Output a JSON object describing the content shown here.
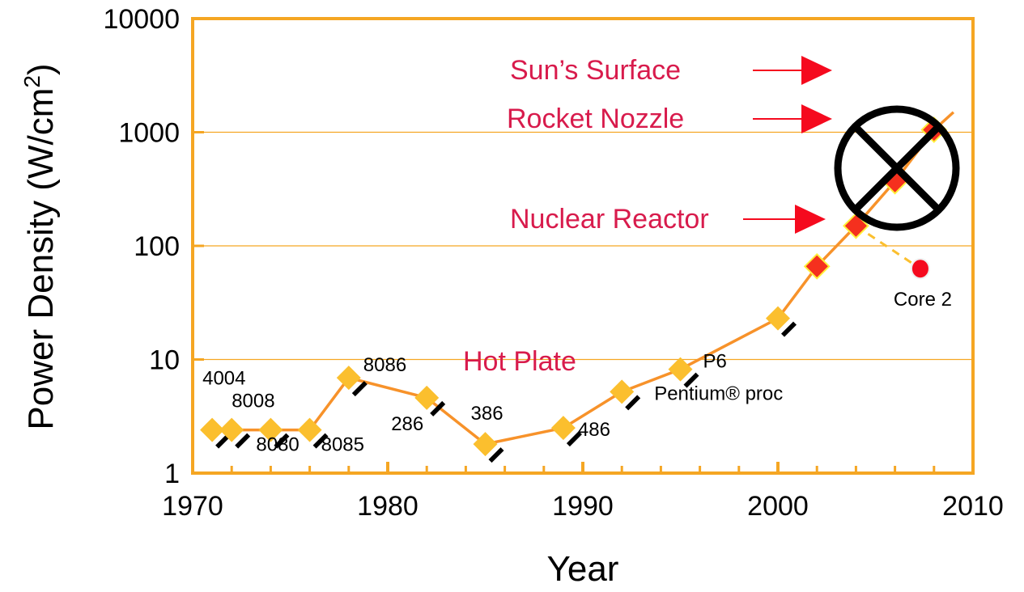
{
  "chart_data": {
    "type": "line",
    "title": "",
    "xlabel": "Year",
    "ylabel": "Power Density (W/cm²)",
    "ylabel_parts": {
      "main": "Power Density (W/cm",
      "sup": "2",
      "end": ")"
    },
    "xlim": [
      1970,
      2010
    ],
    "ylim": [
      1,
      10000
    ],
    "yscale": "log",
    "grid": "horizontal at decades",
    "x_ticks": [
      "1970",
      "1980",
      "1990",
      "2000",
      "2010"
    ],
    "y_ticks": [
      "1",
      "10",
      "100",
      "1000",
      "10000"
    ],
    "colors": {
      "axis": "#f5a623",
      "line": "#f7922a",
      "diamond": "#fbbf2e",
      "diamond_hot": "#f5301e",
      "annotation": "#d81b4c",
      "arrow": "#f50a1e",
      "core2": "#f50a1e"
    },
    "series": [
      {
        "points": [
          {
            "x": 1971,
            "y": 2.4,
            "label": "4004",
            "color": "diamond"
          },
          {
            "x": 1972,
            "y": 2.4,
            "label": "8008",
            "color": "diamond"
          },
          {
            "x": 1974,
            "y": 2.4,
            "label": "8080",
            "color": "diamond"
          },
          {
            "x": 1976,
            "y": 2.4,
            "label": "8085",
            "color": "diamond"
          },
          {
            "x": 1978,
            "y": 6.9,
            "label": "8086",
            "color": "diamond"
          },
          {
            "x": 1982,
            "y": 4.6,
            "label": "286",
            "color": "diamond"
          },
          {
            "x": 1985,
            "y": 1.8,
            "label": "386",
            "color": "diamond"
          },
          {
            "x": 1989,
            "y": 2.5,
            "label": "486",
            "color": "diamond"
          },
          {
            "x": 1992,
            "y": 5.2,
            "label": "Pentium® proc",
            "color": "diamond"
          },
          {
            "x": 1995,
            "y": 8.2,
            "label": "P6",
            "color": "diamond"
          },
          {
            "x": 2000,
            "y": 23,
            "label": "",
            "color": "diamond"
          },
          {
            "x": 2002,
            "y": 66,
            "label": "",
            "color": "diamond_hot"
          },
          {
            "x": 2004,
            "y": 150,
            "label": "",
            "color": "diamond_hot"
          },
          {
            "x": 2006,
            "y": 370,
            "label": "",
            "color": "diamond_hot"
          },
          {
            "x": 2008,
            "y": 1050,
            "label": "",
            "color": "diamond_hot"
          }
        ],
        "trend_end": {
          "x": 2009,
          "y": 1500
        }
      }
    ],
    "core2": {
      "x": 2007.3,
      "y": 63,
      "label": "Core 2",
      "from": {
        "x": 2004,
        "y": 150
      }
    },
    "annotations": [
      {
        "text": "Sun’s Surface",
        "level": 3000
      },
      {
        "text": "Rocket Nozzle",
        "level": 1000
      },
      {
        "text": "Nuclear Reactor",
        "level": 130
      },
      {
        "text": "Hot Plate",
        "level": 10
      }
    ],
    "crossed_circle": {
      "x": 2006,
      "y": 500
    }
  }
}
